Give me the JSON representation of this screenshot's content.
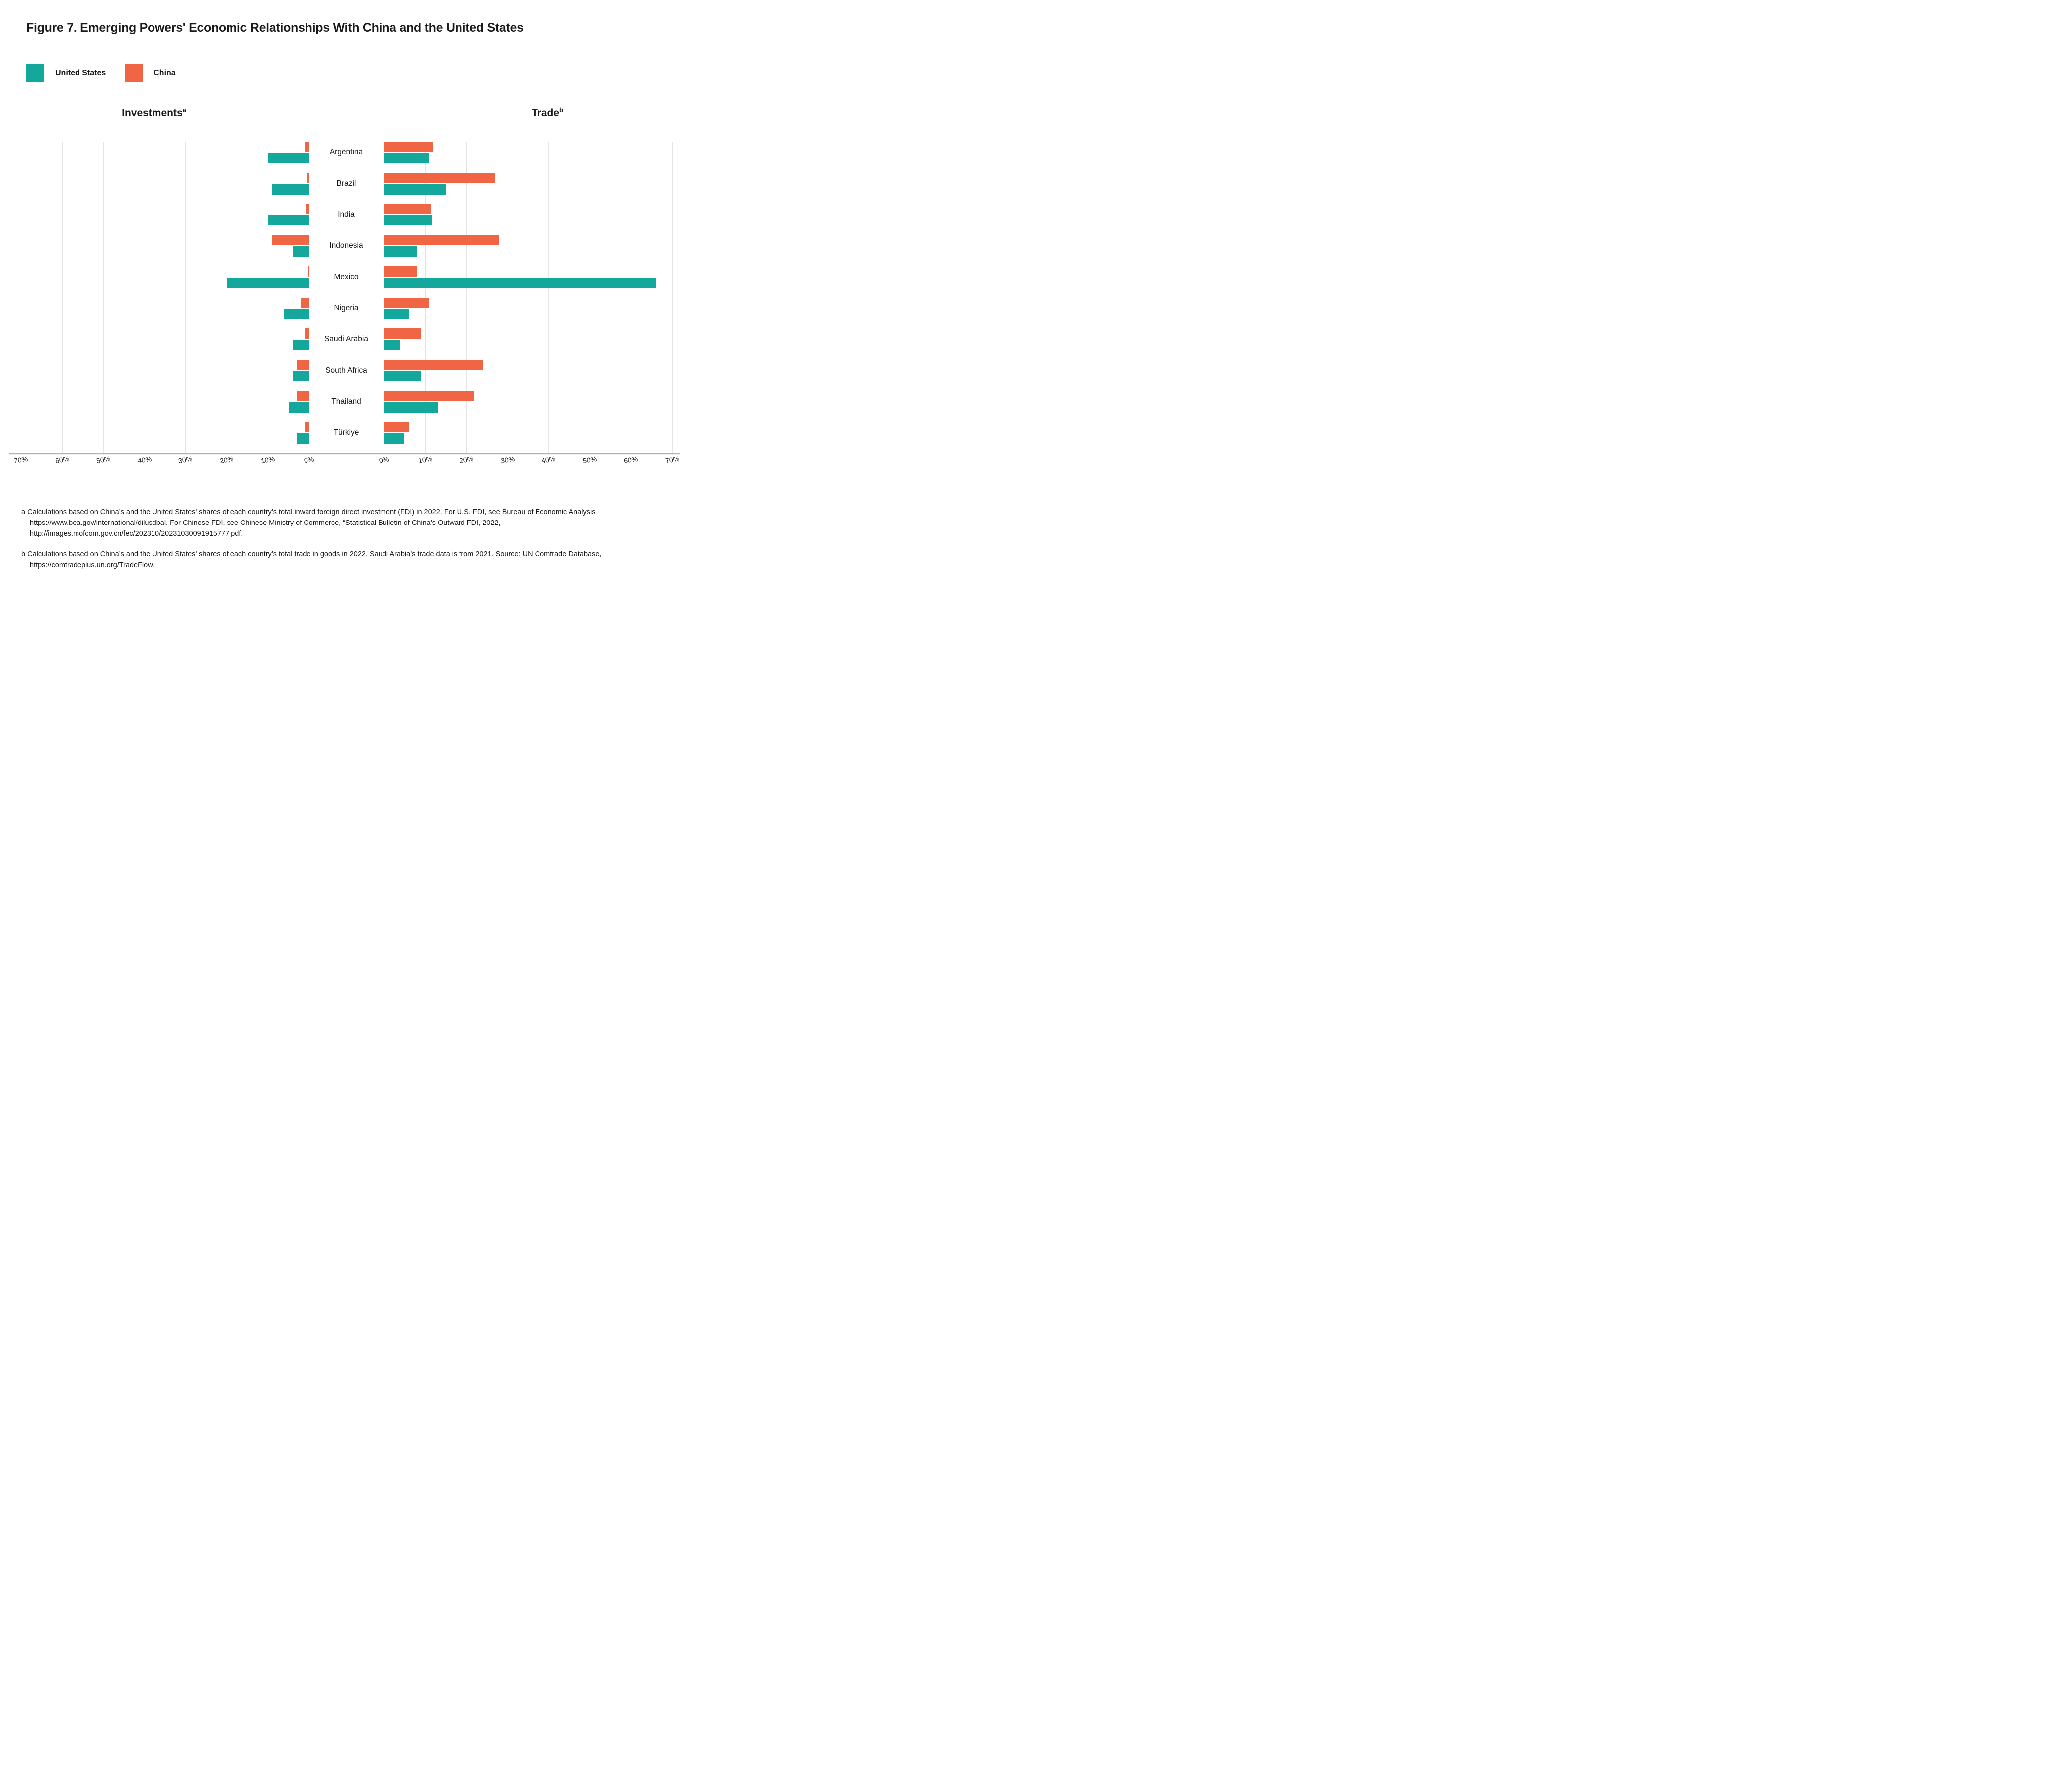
{
  "title": "Figure 7. Emerging Powers' Economic Relationships With China and the United States",
  "legend": {
    "items": [
      {
        "label": "United States",
        "color": "#14A79C"
      },
      {
        "label": "China",
        "color": "#F06543"
      }
    ]
  },
  "panels": {
    "left": {
      "title": "Investments",
      "sup": "a"
    },
    "right": {
      "title": "Trade",
      "sup": "b"
    }
  },
  "axis": {
    "max_percent": 70,
    "left_ticks": [
      "70%",
      "60%",
      "50%",
      "40%",
      "30%",
      "20%",
      "10%",
      "0%"
    ],
    "right_ticks": [
      "0%",
      "10%",
      "20%",
      "30%",
      "40%",
      "50%",
      "60%",
      "70%"
    ]
  },
  "colors": {
    "united_states": "#14A79C",
    "china": "#F06543",
    "gridline": "#e4e4e4",
    "axis_line": "#b2b2b2"
  },
  "chart_data": {
    "type": "bar",
    "orientation": "horizontal-diverging",
    "xlim": [
      0,
      70
    ],
    "grid": true,
    "legend_position": "top-left",
    "panel_left_label": "Investments",
    "panel_right_label": "Trade",
    "units": "percent share",
    "categories": [
      "Argentina",
      "Brazil",
      "India",
      "Indonesia",
      "Mexico",
      "Nigeria",
      "Saudi Arabia",
      "South Africa",
      "Thailand",
      "Türkiye"
    ],
    "countries": [
      {
        "name": "Argentina",
        "investments": {
          "china": 1.0,
          "united_states": 10.0
        },
        "trade": {
          "china": 12.0,
          "united_states": 11.0
        }
      },
      {
        "name": "Brazil",
        "investments": {
          "china": 0.4,
          "united_states": 9.0
        },
        "trade": {
          "china": 27.0,
          "united_states": 15.0
        }
      },
      {
        "name": "India",
        "investments": {
          "china": 0.7,
          "united_states": 10.0
        },
        "trade": {
          "china": 11.5,
          "united_states": 11.7
        }
      },
      {
        "name": "Indonesia",
        "investments": {
          "china": 9.0,
          "united_states": 4.0
        },
        "trade": {
          "china": 28.0,
          "united_states": 8.0
        }
      },
      {
        "name": "Mexico",
        "investments": {
          "china": 0.2,
          "united_states": 20.0
        },
        "trade": {
          "china": 8.0,
          "united_states": 66.0
        }
      },
      {
        "name": "Nigeria",
        "investments": {
          "china": 2.0,
          "united_states": 6.0
        },
        "trade": {
          "china": 11.0,
          "united_states": 6.0
        }
      },
      {
        "name": "Saudi Arabia",
        "investments": {
          "china": 1.0,
          "united_states": 4.0
        },
        "trade": {
          "china": 9.0,
          "united_states": 4.0
        }
      },
      {
        "name": "South Africa",
        "investments": {
          "china": 3.0,
          "united_states": 4.0
        },
        "trade": {
          "china": 24.0,
          "united_states": 9.0
        }
      },
      {
        "name": "Thailand",
        "investments": {
          "china": 3.0,
          "united_states": 5.0
        },
        "trade": {
          "china": 22.0,
          "united_states": 13.0
        }
      },
      {
        "name": "Türkiye",
        "investments": {
          "china": 1.0,
          "united_states": 3.0
        },
        "trade": {
          "china": 6.0,
          "united_states": 5.0
        }
      }
    ]
  },
  "footnotes": {
    "a": "a Calculations based on China’s and the United States’ shares of each country’s total inward foreign direct investment (FDI) in 2022. For U.S. FDI, see Bureau of Economic Analysis https://www.bea.gov/international/dilusdbal. For Chinese FDI, see Chinese Ministry of Commerce, “Statistical Bulletin of China’s Outward FDI, 2022, http://images.mofcom.gov.cn/fec/202310/20231030091915777.pdf.",
    "b": "b Calculations based on China’s and the United States’ shares of each country’s total trade in goods in 2022. Saudi Arabia’s trade data is from 2021. Source: UN Comtrade Database, https://comtradeplus.un.org/TradeFlow."
  }
}
